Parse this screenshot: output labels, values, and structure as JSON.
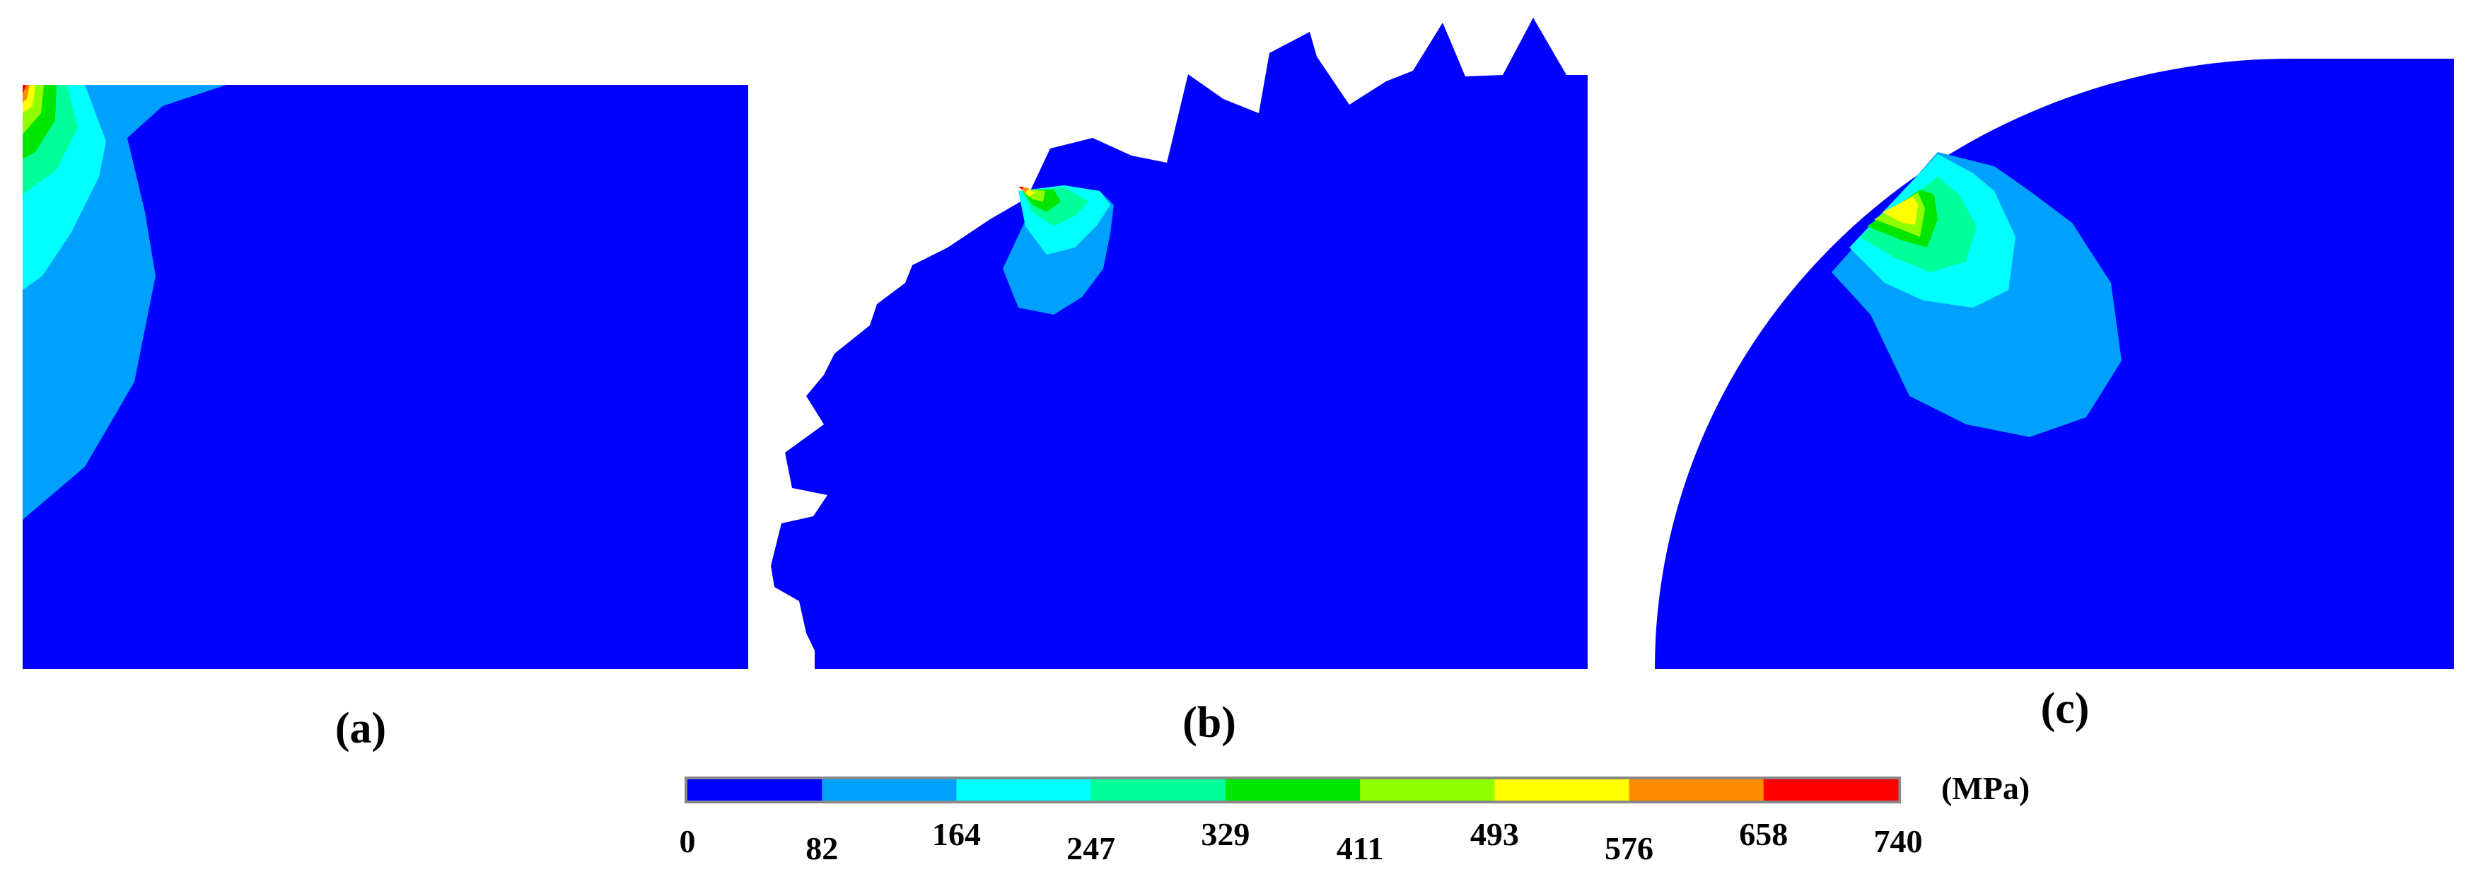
{
  "panels": [
    {
      "id": "a",
      "label": "(a)"
    },
    {
      "id": "b",
      "label": "(b)"
    },
    {
      "id": "c",
      "label": "(c)"
    }
  ],
  "colorbar": {
    "unit": "(MPa)",
    "ticks": [
      "0",
      "82",
      "164",
      "247",
      "329",
      "411",
      "493",
      "576",
      "658",
      "740"
    ],
    "colors": [
      "#0000ff",
      "#00a0ff",
      "#00ffff",
      "#00ff9a",
      "#00e600",
      "#90ff00",
      "#ffff00",
      "#ff8c00",
      "#ff0000"
    ]
  }
}
